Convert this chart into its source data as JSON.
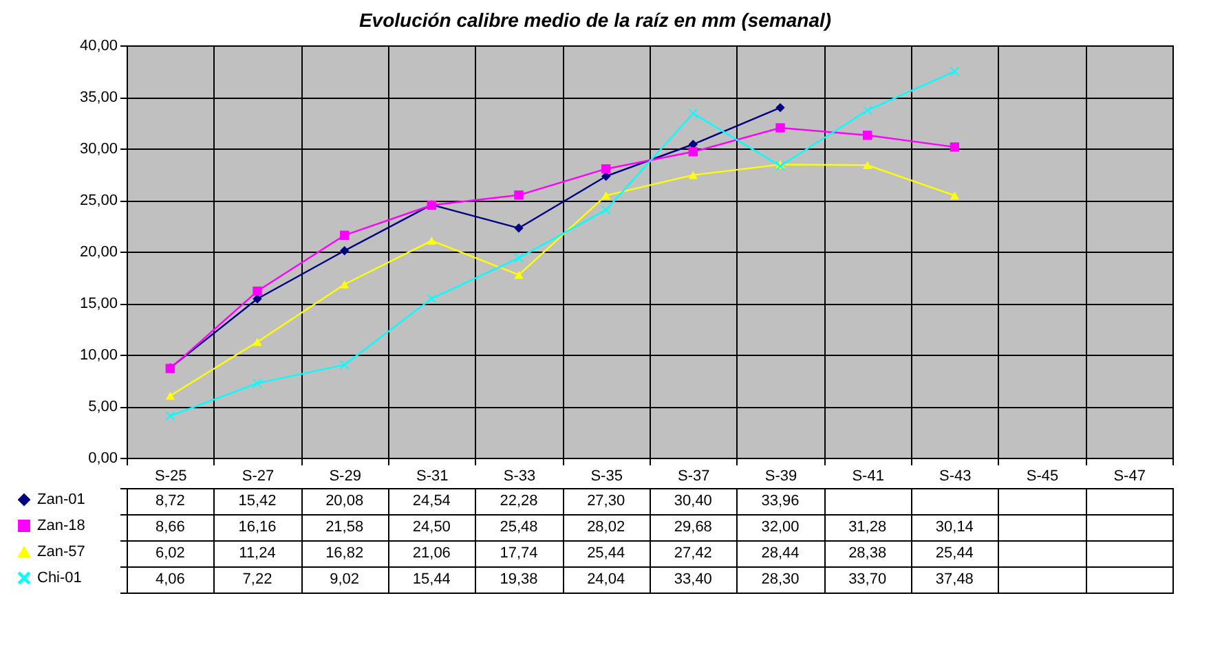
{
  "chart_data": {
    "type": "line",
    "title": "Evolución calibre medio de la raíz en mm (semanal)",
    "categories": [
      "S-25",
      "S-27",
      "S-29",
      "S-31",
      "S-33",
      "S-35",
      "S-37",
      "S-39",
      "S-41",
      "S-43",
      "S-45",
      "S-47"
    ],
    "series": [
      {
        "name": "Zan-01",
        "color": "#000080",
        "marker": "diamond",
        "values": [
          8.72,
          15.42,
          20.08,
          24.54,
          22.28,
          27.3,
          30.4,
          33.96,
          null,
          null,
          null,
          null
        ],
        "value_labels": [
          "8,72",
          "15,42",
          "20,08",
          "24,54",
          "22,28",
          "27,30",
          "30,40",
          "33,96",
          null,
          null,
          null,
          null
        ]
      },
      {
        "name": "Zan-18",
        "color": "#ff00ff",
        "marker": "square",
        "values": [
          8.66,
          16.16,
          21.58,
          24.5,
          25.48,
          28.02,
          29.68,
          32.0,
          31.28,
          30.14,
          null,
          null
        ],
        "value_labels": [
          "8,66",
          "16,16",
          "21,58",
          "24,50",
          "25,48",
          "28,02",
          "29,68",
          "32,00",
          "31,28",
          "30,14",
          null,
          null
        ]
      },
      {
        "name": "Zan-57",
        "color": "#ffff00",
        "marker": "triangle",
        "values": [
          6.02,
          11.24,
          16.82,
          21.06,
          17.74,
          25.44,
          27.42,
          28.44,
          28.38,
          25.44,
          null,
          null
        ],
        "value_labels": [
          "6,02",
          "11,24",
          "16,82",
          "21,06",
          "17,74",
          "25,44",
          "27,42",
          "28,44",
          "28,38",
          "25,44",
          null,
          null
        ]
      },
      {
        "name": "Chi-01",
        "color": "#00ffff",
        "marker": "cross",
        "values": [
          4.06,
          7.22,
          9.02,
          15.44,
          19.38,
          24.04,
          33.4,
          28.3,
          33.7,
          37.48,
          null,
          null
        ],
        "value_labels": [
          "4,06",
          "7,22",
          "9,02",
          "15,44",
          "19,38",
          "24,04",
          "33,40",
          "28,30",
          "33,70",
          "37,48",
          null,
          null
        ]
      }
    ],
    "ylim": [
      0,
      40
    ],
    "yticks": [
      {
        "value": 0,
        "label": "0,00"
      },
      {
        "value": 5,
        "label": "5,00"
      },
      {
        "value": 10,
        "label": "10,00"
      },
      {
        "value": 15,
        "label": "15,00"
      },
      {
        "value": 20,
        "label": "20,00"
      },
      {
        "value": 25,
        "label": "25,00"
      },
      {
        "value": 30,
        "label": "30,00"
      },
      {
        "value": 35,
        "label": "35,00"
      },
      {
        "value": 40,
        "label": "40,00"
      }
    ],
    "grid": true,
    "legend": "bottom left",
    "line_style": "solid"
  }
}
